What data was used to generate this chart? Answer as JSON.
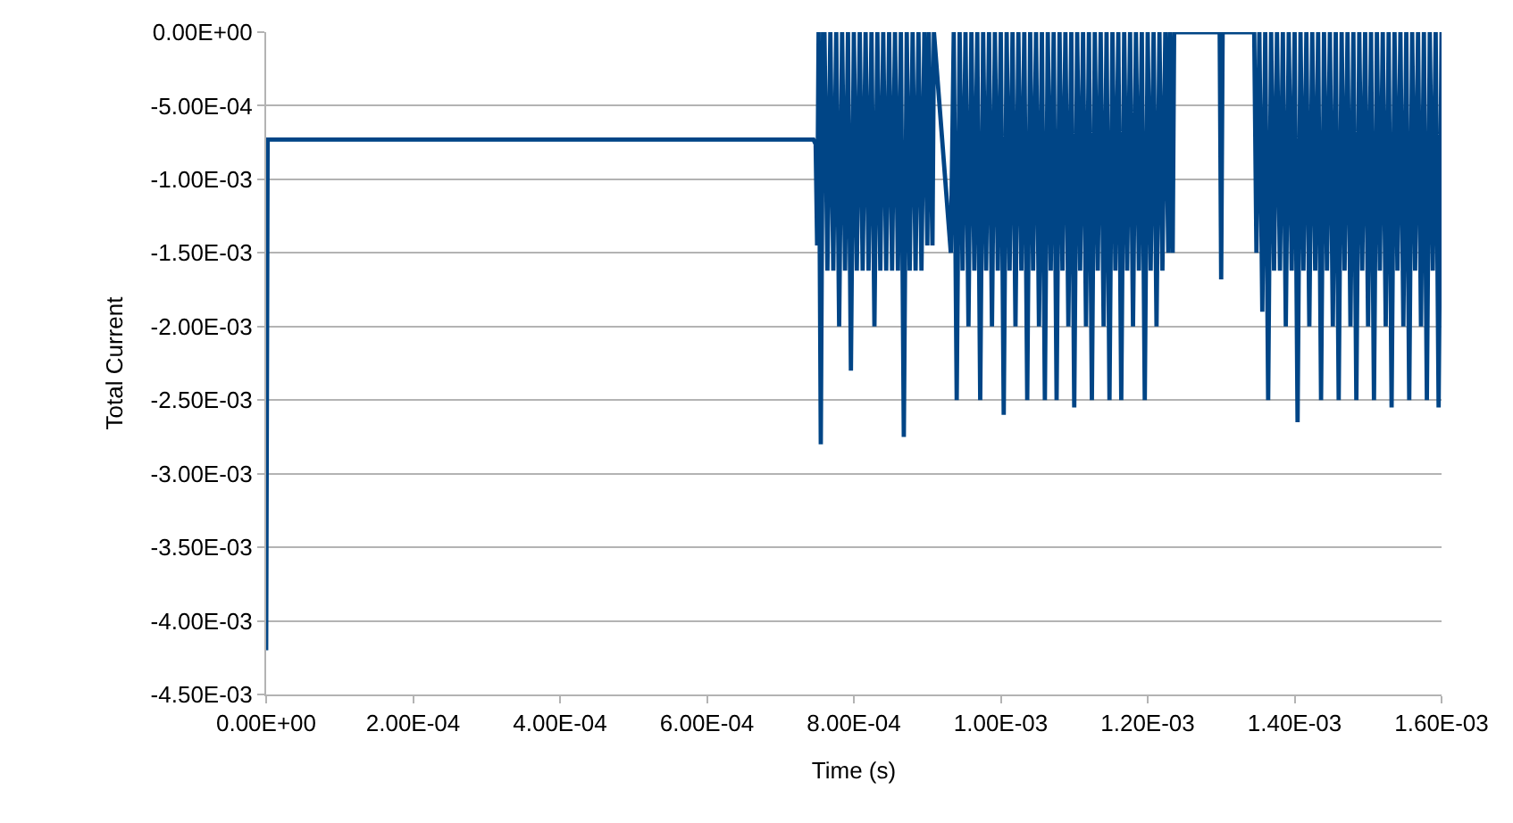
{
  "chart_data": {
    "type": "line",
    "xlabel": "Time (s)",
    "ylabel": "Total Current",
    "xlim": [
      0,
      0.0016
    ],
    "ylim": [
      -0.0045,
      0
    ],
    "xticks": [
      {
        "value": 0,
        "label": "0.00E+00"
      },
      {
        "value": 0.0002,
        "label": "2.00E-04"
      },
      {
        "value": 0.0004,
        "label": "4.00E-04"
      },
      {
        "value": 0.0006,
        "label": "6.00E-04"
      },
      {
        "value": 0.0008,
        "label": "8.00E-04"
      },
      {
        "value": 0.001,
        "label": "1.00E-03"
      },
      {
        "value": 0.0012,
        "label": "1.20E-03"
      },
      {
        "value": 0.0014,
        "label": "1.40E-03"
      },
      {
        "value": 0.0016,
        "label": "1.60E-03"
      }
    ],
    "yticks": [
      {
        "value": 0,
        "label": "0.00E+00"
      },
      {
        "value": -0.0005,
        "label": "-5.00E-04"
      },
      {
        "value": -0.001,
        "label": "-1.00E-03"
      },
      {
        "value": -0.0015,
        "label": "-1.50E-03"
      },
      {
        "value": -0.002,
        "label": "-2.00E-03"
      },
      {
        "value": -0.0025,
        "label": "-2.50E-03"
      },
      {
        "value": -0.003,
        "label": "-3.00E-03"
      },
      {
        "value": -0.0035,
        "label": "-3.50E-03"
      },
      {
        "value": -0.004,
        "label": "-4.00E-03"
      },
      {
        "value": -0.0045,
        "label": "-4.50E-03"
      }
    ],
    "grid": "y",
    "marker": "none",
    "line_style": "solid",
    "series": [
      {
        "color": "#004586",
        "x": [
          0,
          2e-06,
          0.000745,
          0.000748,
          0.00075,
          0.000752,
          0.000755,
          0.000758,
          0.00076,
          0.000764,
          0.000768,
          0.000772,
          0.000776,
          0.00078,
          0.000784,
          0.000788,
          0.000792,
          0.000796,
          0.0008,
          0.000804,
          0.000808,
          0.000812,
          0.000816,
          0.00082,
          0.000824,
          0.000828,
          0.000832,
          0.000836,
          0.00084,
          0.000844,
          0.000848,
          0.000852,
          0.000856,
          0.00086,
          0.000864,
          0.000868,
          0.000872,
          0.000876,
          0.00088,
          0.000884,
          0.000888,
          0.000892,
          0.000896,
          0.0009,
          0.000902,
          0.000907,
          0.000909,
          0.000932,
          0.000936,
          0.00094,
          0.000944,
          0.000948,
          0.000952,
          0.000956,
          0.00096,
          0.000964,
          0.000968,
          0.000972,
          0.000976,
          0.00098,
          0.000984,
          0.000988,
          0.000992,
          0.000996,
          0.001,
          0.001004,
          0.001008,
          0.001012,
          0.001016,
          0.00102,
          0.001024,
          0.001028,
          0.001032,
          0.001036,
          0.00104,
          0.001044,
          0.001048,
          0.001052,
          0.001056,
          0.00106,
          0.001064,
          0.001068,
          0.001072,
          0.001076,
          0.00108,
          0.001084,
          0.001088,
          0.001092,
          0.001096,
          0.0011,
          0.001104,
          0.001108,
          0.001112,
          0.001116,
          0.00112,
          0.001124,
          0.001128,
          0.001132,
          0.001136,
          0.00114,
          0.001144,
          0.001148,
          0.001152,
          0.001156,
          0.00116,
          0.001164,
          0.001168,
          0.001172,
          0.001176,
          0.00118,
          0.001184,
          0.001188,
          0.001192,
          0.001196,
          0.0012,
          0.001204,
          0.001208,
          0.001212,
          0.001216,
          0.00122,
          0.001224,
          0.001228,
          0.00123,
          0.001234,
          0.001236,
          0.001298,
          0.0013,
          0.001302,
          0.001345,
          0.001348,
          0.001352,
          0.001356,
          0.00136,
          0.001364,
          0.001368,
          0.001372,
          0.001376,
          0.00138,
          0.001384,
          0.001388,
          0.001392,
          0.001396,
          0.0014,
          0.001404,
          0.001408,
          0.001412,
          0.001416,
          0.00142,
          0.001424,
          0.001428,
          0.001432,
          0.001436,
          0.00144,
          0.001444,
          0.001448,
          0.001452,
          0.001456,
          0.00146,
          0.001464,
          0.001468,
          0.001472,
          0.001476,
          0.00148,
          0.001484,
          0.001488,
          0.001492,
          0.001496,
          0.0015,
          0.001504,
          0.001508,
          0.001512,
          0.001516,
          0.00152,
          0.001524,
          0.001528,
          0.001532,
          0.001536,
          0.00154,
          0.001544,
          0.001548,
          0.001552,
          0.001556,
          0.00156,
          0.001564,
          0.001568,
          0.001572,
          0.001576,
          0.00158,
          0.001584,
          0.001588,
          0.001592,
          0.001596,
          0.0016
        ],
        "values": [
          -0.0042,
          -0.00073,
          -0.00073,
          -0.00076,
          -0.00145,
          0,
          -0.0028,
          0,
          0,
          -0.00162,
          0,
          -0.00162,
          0,
          -0.002,
          0,
          -0.00162,
          0,
          -0.0023,
          0,
          -0.00162,
          0,
          -0.00162,
          0,
          -0.00162,
          0,
          -0.002,
          0,
          -0.00162,
          0,
          -0.00162,
          0,
          -0.00162,
          0,
          -0.00162,
          0,
          -0.00275,
          0,
          -0.00162,
          0,
          -0.00162,
          0,
          -0.00162,
          0,
          -0.00145,
          0,
          -0.00145,
          0,
          -0.0015,
          0,
          -0.0025,
          0,
          -0.00162,
          0,
          -0.002,
          0,
          -0.00162,
          0,
          -0.0025,
          0,
          -0.00162,
          0,
          -0.002,
          0,
          -0.00162,
          0,
          -0.0026,
          0,
          -0.00162,
          0,
          -0.002,
          0,
          -0.00162,
          0,
          -0.0025,
          0,
          -0.00162,
          0,
          -0.002,
          0,
          -0.0025,
          0,
          -0.00162,
          0,
          -0.0025,
          0,
          -0.00162,
          0,
          -0.002,
          0,
          -0.00255,
          0,
          -0.00162,
          0,
          -0.002,
          0,
          -0.0025,
          0,
          -0.00162,
          0,
          -0.002,
          0,
          -0.0025,
          0,
          -0.00162,
          0,
          -0.0025,
          0,
          -0.00162,
          0,
          -0.002,
          0,
          -0.00162,
          0,
          -0.0025,
          0,
          -0.00162,
          0,
          -0.002,
          0,
          -0.00162,
          0,
          -0.0015,
          0,
          -0.0015,
          0,
          0,
          -0.00168,
          0,
          0,
          -0.0015,
          0,
          -0.0019,
          0,
          -0.0025,
          0,
          -0.00162,
          0,
          -0.00162,
          0,
          -0.002,
          0,
          -0.00162,
          0,
          -0.00265,
          0,
          -0.00162,
          0,
          -0.002,
          0,
          -0.00162,
          0,
          -0.0025,
          0,
          -0.00162,
          0,
          -0.002,
          0,
          -0.0025,
          0,
          -0.00162,
          0,
          -0.002,
          0,
          -0.0025,
          0,
          -0.00162,
          0,
          -0.002,
          0,
          -0.0025,
          0,
          -0.00162,
          0,
          -0.002,
          0,
          -0.00255,
          0,
          -0.00162,
          0,
          -0.002,
          0,
          -0.0025,
          0,
          -0.00162,
          0,
          -0.002,
          0,
          -0.0025,
          0,
          -0.00162,
          0,
          -0.00255,
          0
        ]
      }
    ]
  }
}
